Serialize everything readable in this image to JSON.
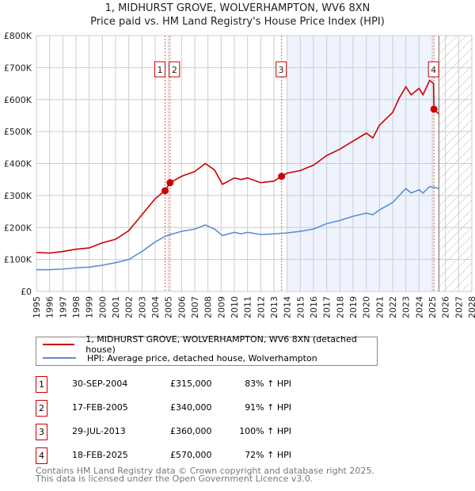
{
  "chart_data": {
    "type": "line",
    "title": "1, MIDHURST GROVE, WOLVERHAMPTON, WV6 8XN",
    "subtitle": "Price paid vs. HM Land Registry's House Price Index (HPI)",
    "xlim": [
      1995,
      2028
    ],
    "ylim": [
      0,
      800000
    ],
    "y_ticks": [
      {
        "v": 0,
        "label": "£0"
      },
      {
        "v": 100000,
        "label": "£100K"
      },
      {
        "v": 200000,
        "label": "£200K"
      },
      {
        "v": 300000,
        "label": "£300K"
      },
      {
        "v": 400000,
        "label": "£400K"
      },
      {
        "v": 500000,
        "label": "£500K"
      },
      {
        "v": 600000,
        "label": "£600K"
      },
      {
        "v": 700000,
        "label": "£700K"
      },
      {
        "v": 800000,
        "label": "£800K"
      }
    ],
    "x_ticks": [
      "1995",
      "1996",
      "1997",
      "1998",
      "1999",
      "2000",
      "2001",
      "2002",
      "2003",
      "2004",
      "2005",
      "2006",
      "2007",
      "2008",
      "2009",
      "2010",
      "2011",
      "2012",
      "2013",
      "2014",
      "2015",
      "2016",
      "2017",
      "2018",
      "2019",
      "2020",
      "2021",
      "2022",
      "2023",
      "2024",
      "2025",
      "2026",
      "2027",
      "2028"
    ],
    "series": [
      {
        "name": "1, MIDHURST GROVE, WOLVERHAMPTON, WV6 8XN (detached house)",
        "color": "#cc0000",
        "x": [
          1995,
          1996,
          1997,
          1998,
          1999,
          2000,
          2001,
          2002,
          2003,
          2004,
          2004.75,
          2005.13,
          2006,
          2007,
          2007.8,
          2008.5,
          2009.1,
          2010,
          2010.5,
          2011,
          2012,
          2013,
          2013.58,
          2014,
          2015,
          2016,
          2017,
          2018,
          2019,
          2020,
          2020.5,
          2021,
          2022,
          2022.5,
          2023,
          2023.4,
          2024,
          2024.3,
          2024.8,
          2025.1,
          2025.13,
          2025.5
        ],
        "y": [
          122000,
          120000,
          125000,
          132000,
          136000,
          152000,
          163000,
          190000,
          240000,
          290000,
          315000,
          340000,
          360000,
          375000,
          400000,
          380000,
          335000,
          355000,
          350000,
          355000,
          340000,
          345000,
          360000,
          370000,
          378000,
          395000,
          425000,
          445000,
          470000,
          495000,
          480000,
          520000,
          560000,
          605000,
          640000,
          615000,
          635000,
          615000,
          660000,
          650000,
          570000,
          555000
        ]
      },
      {
        "name": "HPI: Average price, detached house, Wolverhampton",
        "color": "#5b8fd4",
        "x": [
          1995,
          1996,
          1997,
          1998,
          1999,
          2000,
          2001,
          2002,
          2003,
          2004,
          2004.75,
          2005,
          2006,
          2007,
          2007.8,
          2008.5,
          2009.1,
          2010,
          2010.5,
          2011,
          2012,
          2013,
          2014,
          2015,
          2016,
          2017,
          2018,
          2019,
          2020,
          2020.5,
          2021,
          2022,
          2022.5,
          2023,
          2023.4,
          2024,
          2024.3,
          2024.8,
          2025.2,
          2025.5
        ],
        "y": [
          68000,
          68000,
          70000,
          74000,
          76000,
          82000,
          90000,
          100000,
          125000,
          155000,
          172000,
          176000,
          188000,
          195000,
          208000,
          195000,
          175000,
          185000,
          180000,
          185000,
          178000,
          180000,
          183000,
          188000,
          195000,
          212000,
          222000,
          235000,
          245000,
          240000,
          255000,
          278000,
          300000,
          322000,
          308000,
          318000,
          308000,
          328000,
          325000,
          322000
        ]
      }
    ],
    "sales": [
      {
        "num": "1",
        "x": 2004.75,
        "y": 315000,
        "date": "30-SEP-2004",
        "price": "£315,000",
        "hpi": "83% ↑ HPI"
      },
      {
        "num": "2",
        "x": 2005.13,
        "y": 340000,
        "date": "17-FEB-2005",
        "price": "£340,000",
        "hpi": "91% ↑ HPI"
      },
      {
        "num": "3",
        "x": 2013.58,
        "y": 360000,
        "date": "29-JUL-2013",
        "price": "£360,000",
        "hpi": "100% ↑ HPI"
      },
      {
        "num": "4",
        "x": 2025.13,
        "y": 570000,
        "date": "18-FEB-2025",
        "price": "£570,000",
        "hpi": "72% ↑ HPI"
      }
    ],
    "shaded_range": [
      2014,
      2025.13
    ],
    "forecast_from": 2025.5
  },
  "footer": {
    "line1": "Contains HM Land Registry data © Crown copyright and database right 2025.",
    "line2": "This data is licensed under the Open Government Licence v3.0."
  }
}
